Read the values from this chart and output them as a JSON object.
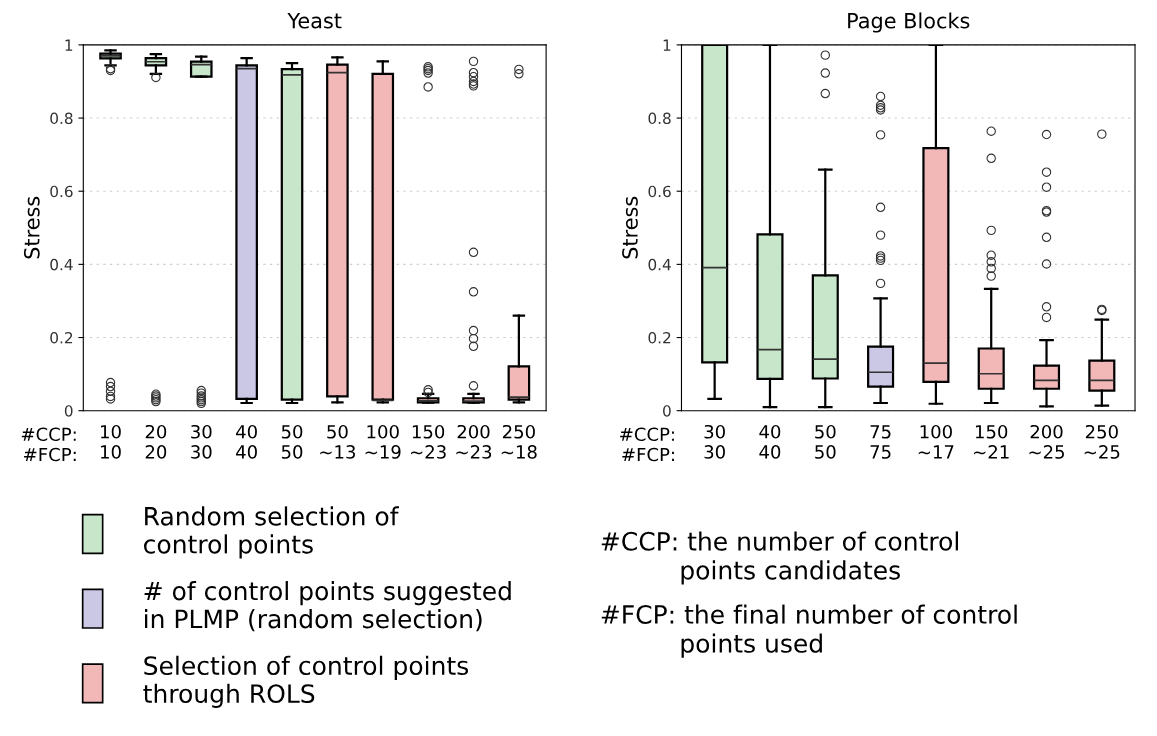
{
  "chart_data": [
    {
      "type": "box",
      "title": "Yeast",
      "ylabel": "Stress",
      "categories": [
        "10\n10",
        "20\n20",
        "30\n30",
        "40\n40",
        "50\n50",
        "50\n~13",
        "100\n~19",
        "150\n~23",
        "200\n~23",
        "250\n~18"
      ],
      "ylim": [
        0,
        1
      ],
      "yticks": [
        0,
        0.2,
        0.4,
        0.6,
        0.8,
        1
      ],
      "grid": "y",
      "legend": "bottom",
      "annotations": [
        "#CCP:\n#FCP:"
      ],
      "series": [
        {
          "name": "Random selection of\ncontrol points",
          "color": "#c8e6c9",
          "boxes": [
            {
              "low": 0.944,
              "q1": 0.963,
              "median": 0.97,
              "q3": 0.976,
              "high": 0.985,
              "outliers": [
                0.93,
                0.935,
                0.032,
                0.039,
                0.053,
                0.066,
                0.077
              ]
            },
            {
              "low": 0.921,
              "q1": 0.944,
              "median": 0.954,
              "q3": 0.964,
              "high": 0.975,
              "outliers": [
                0.911,
                0.025,
                0.03,
                0.035,
                0.04,
                0.045
              ]
            },
            {
              "low": 0.913,
              "q1": 0.913,
              "median": 0.946,
              "q3": 0.954,
              "high": 0.968,
              "outliers": [
                0.02,
                0.025,
                0.03,
                0.035,
                0.04,
                0.048,
                0.055
              ]
            },
            null,
            {
              "low": 0.021,
              "q1": 0.03,
              "median": 0.918,
              "q3": 0.934,
              "high": 0.95
            },
            null,
            null,
            null,
            null,
            null
          ]
        },
        {
          "name": "# of control points suggested\nin PLMP (random selection)",
          "color": "#cbc8e6",
          "boxes": [
            null,
            null,
            null,
            {
              "low": 0.021,
              "q1": 0.032,
              "median": 0.935,
              "q3": 0.944,
              "high": 0.964
            },
            null,
            null,
            null,
            null,
            null,
            null
          ]
        },
        {
          "name": "Selection of control points\nthrough ROLS",
          "color": "#f2b8b8",
          "boxes": [
            null,
            null,
            null,
            null,
            null,
            {
              "low": 0.023,
              "q1": 0.039,
              "median": 0.924,
              "q3": 0.946,
              "high": 0.966
            },
            {
              "low": 0.023,
              "q1": 0.03,
              "median": 0.028,
              "q3": 0.921,
              "high": 0.955
            },
            {
              "low": 0.022,
              "q1": 0.023,
              "median": 0.027,
              "q3": 0.034,
              "high": 0.046,
              "outliers": [
                0.05,
                0.057,
                0.885,
                0.923,
                0.93,
                0.935,
                0.94
              ]
            },
            {
              "low": 0.022,
              "q1": 0.023,
              "median": 0.026,
              "q3": 0.034,
              "high": 0.046,
              "outliers": [
                0.068,
                0.176,
                0.197,
                0.219,
                0.325,
                0.433,
                0.888,
                0.893,
                0.9,
                0.913,
                0.924,
                0.955
              ]
            },
            {
              "low": 0.023,
              "q1": 0.03,
              "median": 0.037,
              "q3": 0.121,
              "high": 0.26,
              "outliers": [
                0.921,
                0.933
              ]
            }
          ]
        }
      ]
    },
    {
      "type": "box",
      "title": "Page Blocks",
      "ylabel": "Stress",
      "categories": [
        "30\n30",
        "40\n40",
        "50\n50",
        "75\n75",
        "100\n~17",
        "150\n~21",
        "200\n~25",
        "250\n~25"
      ],
      "ylim": [
        0,
        1
      ],
      "yticks": [
        0,
        0.2,
        0.4,
        0.6,
        0.8,
        1
      ],
      "grid": "y",
      "annotations": [
        "#CCP:\n#FCP:",
        "#CCP: the number of control\n          points candidates",
        "#FCP: the final number of control\n          points used"
      ],
      "series": [
        {
          "color": "#c8e6c9",
          "boxes": [
            {
              "low": 0.032,
              "q1": 0.132,
              "median": 0.391,
              "q3": 1.0,
              "high": 1.0
            },
            {
              "low": 0.01,
              "q1": 0.087,
              "median": 0.167,
              "q3": 0.482,
              "high": 1.0
            },
            {
              "low": 0.01,
              "q1": 0.088,
              "median": 0.141,
              "q3": 0.37,
              "high": 0.659,
              "outliers": [
                0.867,
                0.923,
                0.972
              ]
            },
            null,
            null,
            null,
            null,
            null
          ]
        },
        {
          "color": "#cbc8e6",
          "boxes": [
            null,
            null,
            null,
            {
              "low": 0.021,
              "q1": 0.066,
              "median": 0.105,
              "q3": 0.175,
              "high": 0.307,
              "outliers": [
                0.348,
                0.411,
                0.417,
                0.423,
                0.48,
                0.556,
                0.754,
                0.822,
                0.828,
                0.835,
                0.859
              ]
            },
            null,
            null,
            null,
            null
          ]
        },
        {
          "color": "#f2b8b8",
          "boxes": [
            null,
            null,
            null,
            null,
            {
              "low": 0.019,
              "q1": 0.079,
              "median": 0.13,
              "q3": 0.718,
              "high": 1.0
            },
            {
              "low": 0.021,
              "q1": 0.06,
              "median": 0.101,
              "q3": 0.17,
              "high": 0.333,
              "outliers": [
                0.368,
                0.389,
                0.407,
                0.425,
                0.493,
                0.69,
                0.764
              ]
            },
            {
              "low": 0.012,
              "q1": 0.06,
              "median": 0.083,
              "q3": 0.123,
              "high": 0.193,
              "outliers": [
                0.255,
                0.284,
                0.401,
                0.474,
                0.543,
                0.547,
                0.611,
                0.652,
                0.755
              ]
            },
            {
              "low": 0.014,
              "q1": 0.055,
              "median": 0.083,
              "q3": 0.137,
              "high": 0.249,
              "outliers": [
                0.274,
                0.277,
                0.756
              ]
            }
          ]
        }
      ]
    }
  ]
}
